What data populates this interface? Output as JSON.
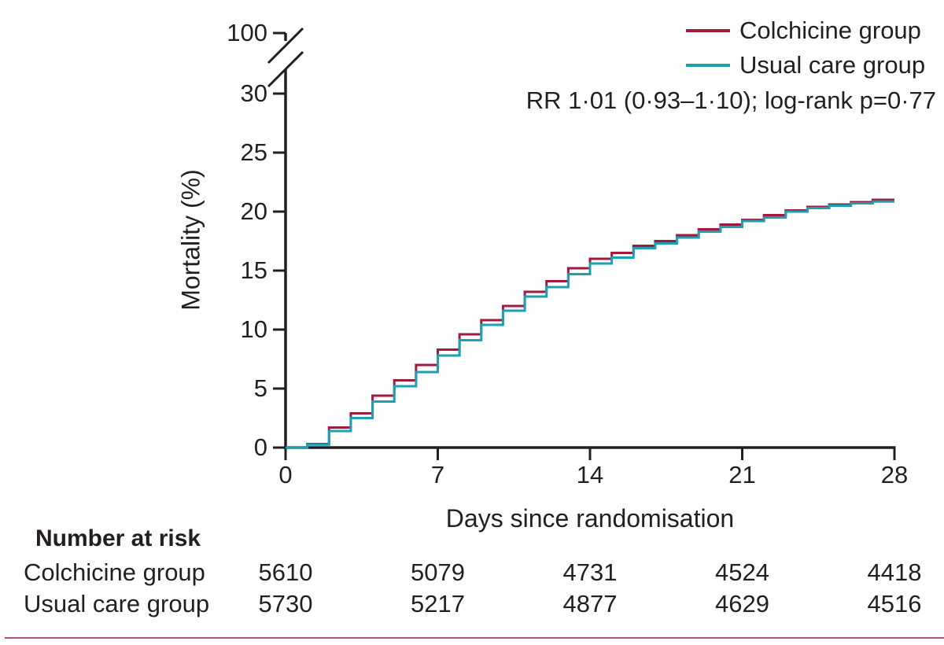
{
  "figure": {
    "background": "#FFFFFF",
    "text_color": "#231F20",
    "axis_color": "#231F20",
    "bottom_rule_color": "#A85672"
  },
  "legend": {
    "items": [
      {
        "label": "Colchicine group",
        "color": "#A21B3F"
      },
      {
        "label": "Usual care group",
        "color": "#1BA0B4"
      }
    ],
    "annotation": "RR 1·01 (0·93–1·10); log-rank p=0·77"
  },
  "chart_data": {
    "type": "line",
    "subtype": "kaplan-meier-step",
    "title": "",
    "xlabel": "Days since randomisation",
    "ylabel": "Mortality (%)",
    "x": [
      0,
      1,
      2,
      3,
      4,
      5,
      6,
      7,
      8,
      9,
      10,
      11,
      12,
      13,
      14,
      15,
      16,
      17,
      18,
      19,
      20,
      21,
      22,
      23,
      24,
      25,
      26,
      27,
      28
    ],
    "series": [
      {
        "name": "Colchicine group",
        "color": "#A21B3F",
        "values": [
          0,
          0.3,
          1.7,
          2.9,
          4.4,
          5.7,
          7.0,
          8.3,
          9.6,
          10.8,
          12.0,
          13.2,
          14.1,
          15.2,
          16.0,
          16.5,
          17.1,
          17.5,
          18.0,
          18.5,
          18.9,
          19.3,
          19.7,
          20.1,
          20.4,
          20.6,
          20.8,
          21.0,
          21.0
        ]
      },
      {
        "name": "Usual care group",
        "color": "#1BA0B4",
        "values": [
          0,
          0.25,
          1.4,
          2.5,
          3.9,
          5.2,
          6.4,
          7.8,
          9.1,
          10.4,
          11.6,
          12.8,
          13.6,
          14.7,
          15.6,
          16.1,
          16.9,
          17.3,
          17.8,
          18.3,
          18.7,
          19.2,
          19.5,
          20.0,
          20.3,
          20.5,
          20.7,
          20.85,
          20.85
        ]
      }
    ],
    "xticks": [
      0,
      7,
      14,
      21,
      28
    ],
    "xtick_labels": [
      "0",
      "7",
      "14",
      "21",
      "28"
    ],
    "yticks_display": [
      30,
      25,
      20,
      15,
      10,
      5,
      0
    ],
    "ytick_labels": [
      "100",
      "30",
      "25",
      "20",
      "15",
      "10",
      "5",
      "0"
    ],
    "ylim_display": [
      0,
      30
    ],
    "axis_break": {
      "between": [
        30,
        100
      ],
      "top_label": "100"
    },
    "grid": false,
    "legend_position": "top-right"
  },
  "risk_table": {
    "title": "Number at risk",
    "timepoints": [
      0,
      7,
      14,
      21,
      28
    ],
    "rows": [
      {
        "label": "Colchicine group",
        "values": [
          "5610",
          "5079",
          "4731",
          "4524",
          "4418"
        ]
      },
      {
        "label": "Usual care group",
        "values": [
          "5730",
          "5217",
          "4877",
          "4629",
          "4516"
        ]
      }
    ]
  }
}
